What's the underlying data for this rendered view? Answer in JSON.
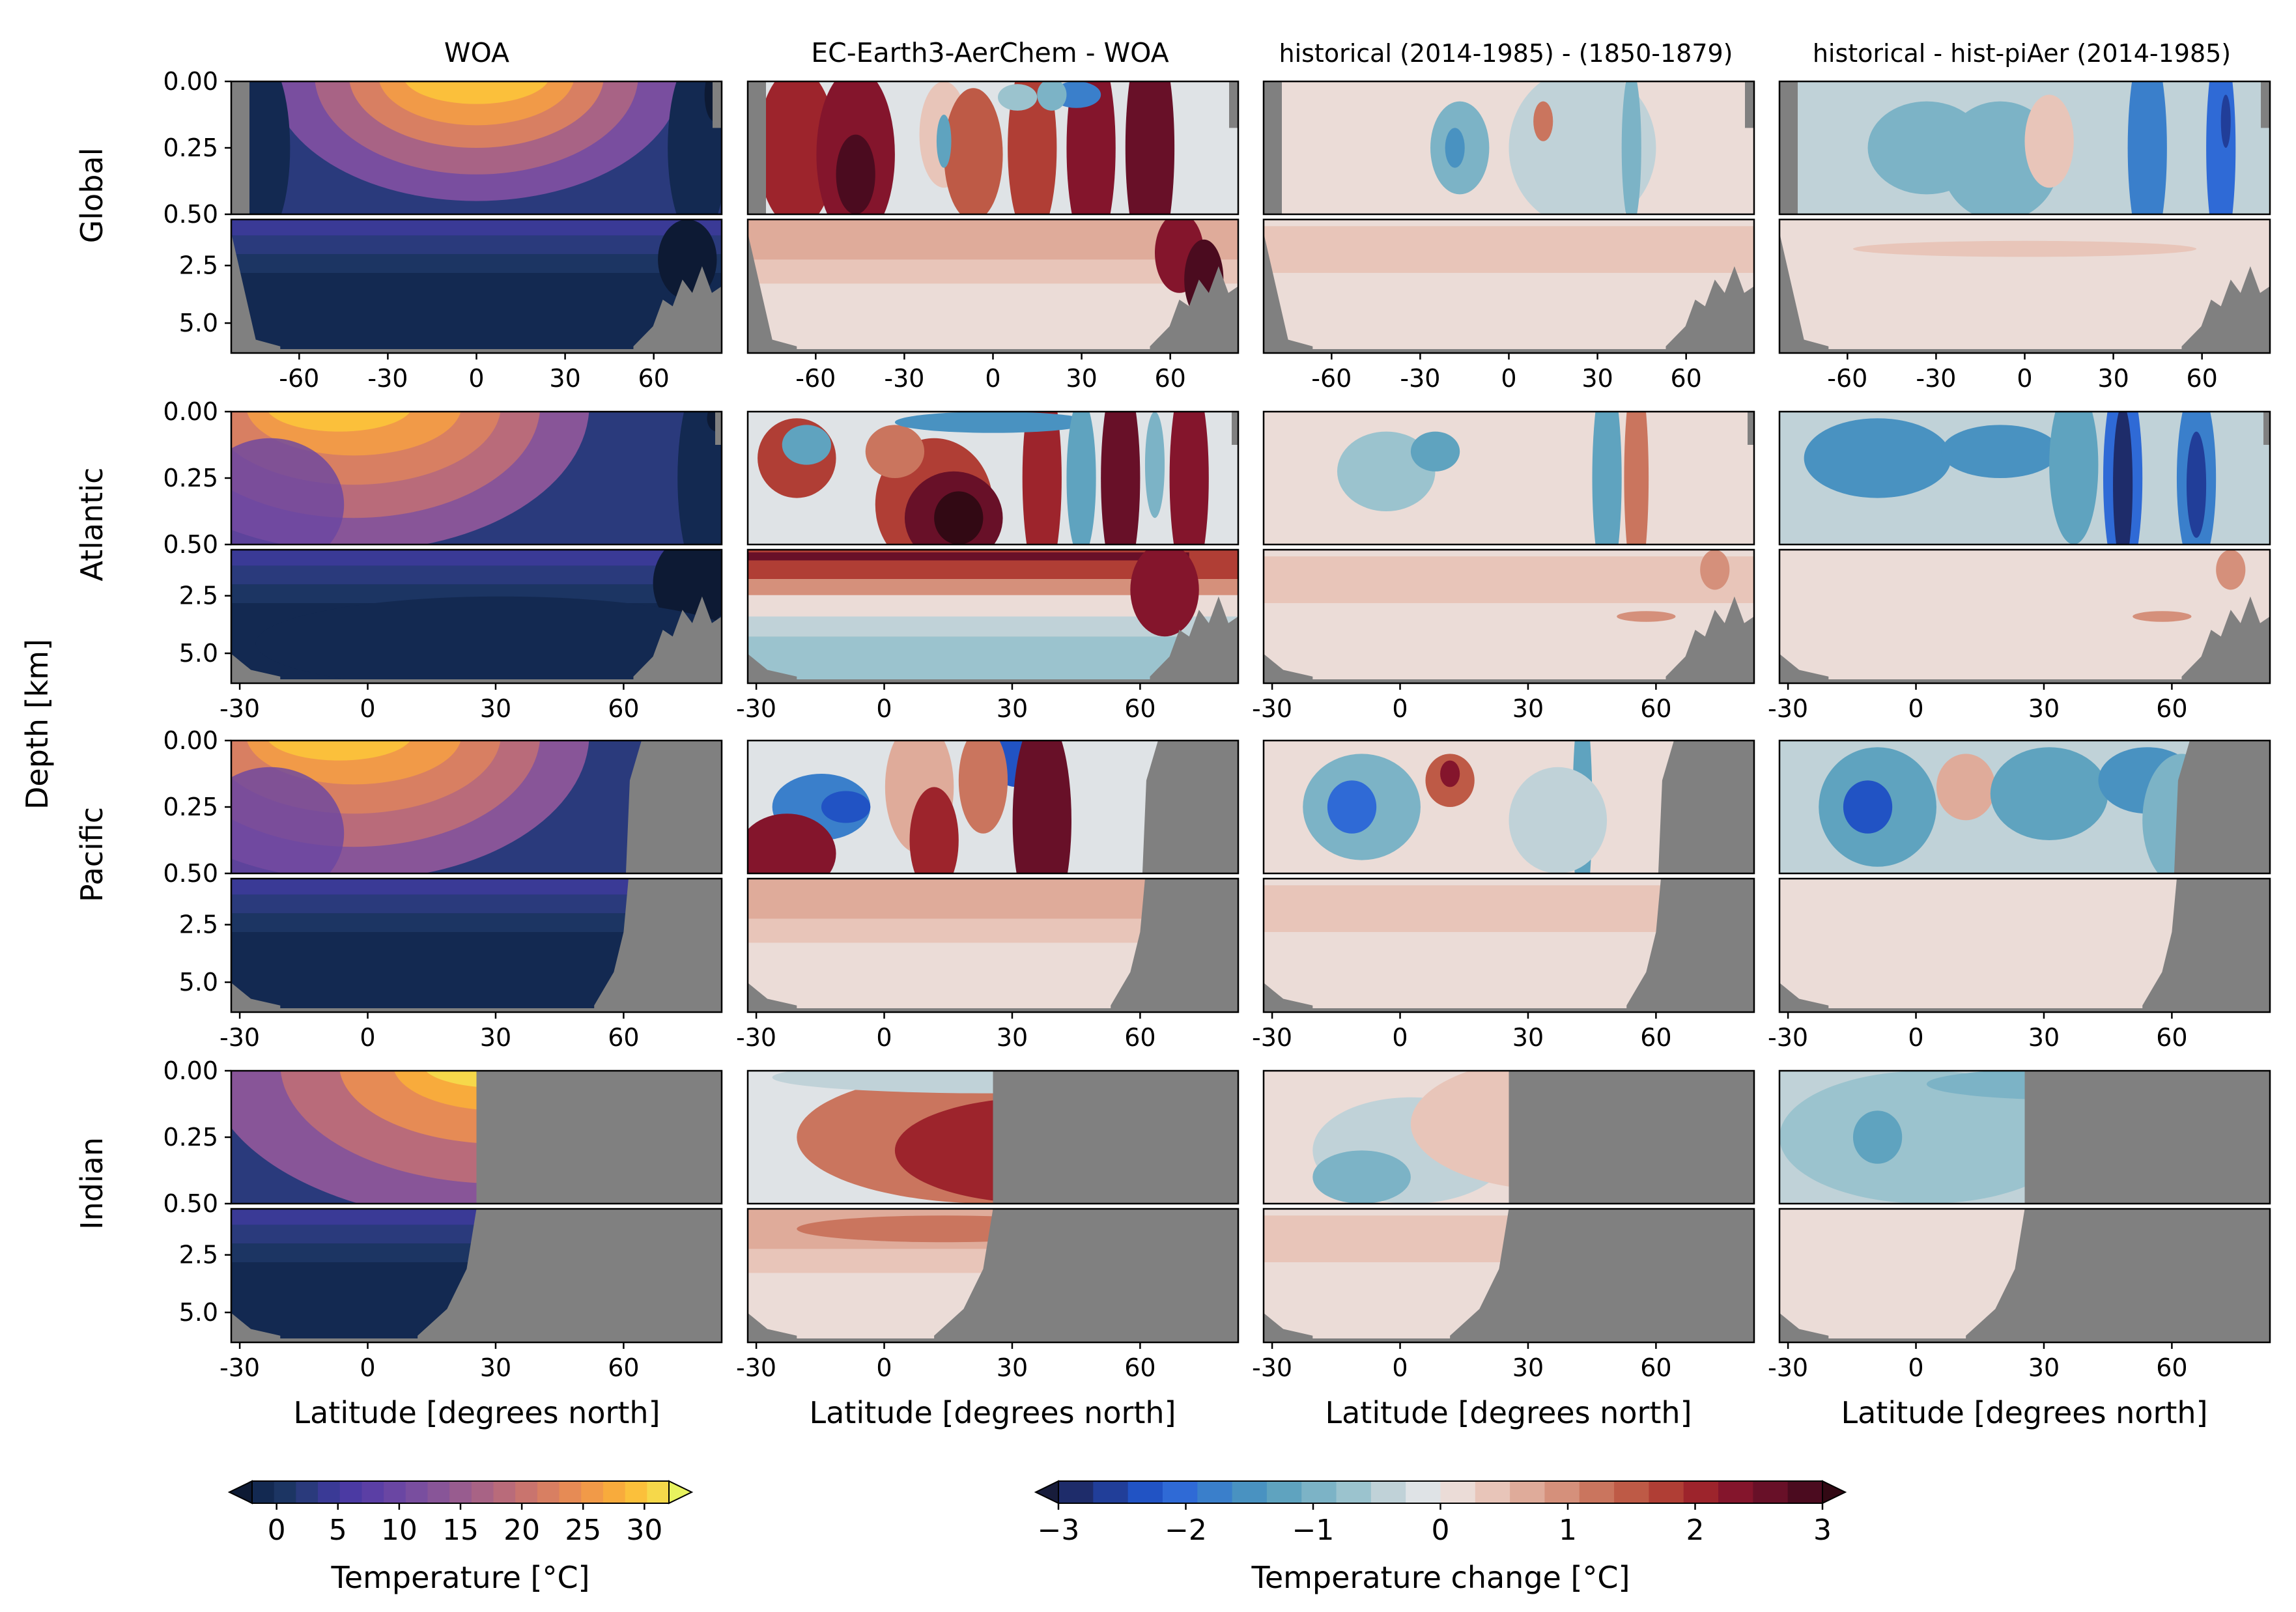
{
  "chart_data": {
    "type": "contour",
    "column_titles": [
      "WOA",
      "EC-Earth3-AerChem - WOA",
      "historical (2014-1985) - (1850-1879)",
      "historical - hist-piAer (2014-1985)"
    ],
    "row_labels": [
      "Global",
      "Atlantic",
      "Pacific",
      "Indian"
    ],
    "ylabel": "Depth [km]",
    "xlabel": "Latitude [degrees north]",
    "upper_depth_ticks": [
      "0.00",
      "0.25",
      "0.50"
    ],
    "upper_depth_tick_values": [
      0.0,
      0.25,
      0.5
    ],
    "lower_depth_ticks": [
      "2.5",
      "5.0"
    ],
    "lower_depth_tick_values": [
      2.5,
      5.0
    ],
    "lower_depth_range": [
      0.5,
      6.3
    ],
    "x_ticks_global": [
      "-60",
      "-30",
      "0",
      "30",
      "60"
    ],
    "x_tick_values_global": [
      -60,
      -30,
      0,
      30,
      60
    ],
    "x_range_global": [
      -83,
      83
    ],
    "x_ticks_basin": [
      "-30",
      "0",
      "30",
      "60"
    ],
    "x_tick_values_basin": [
      -30,
      0,
      30,
      60
    ],
    "x_range_basin": [
      -32,
      83
    ],
    "basin_north_limits": {
      "Global": 83,
      "Atlantic": 83,
      "Pacific": 61,
      "Indian": 25
    },
    "colorbar_temperature": {
      "label": "Temperature [°C]",
      "ticks": [
        "0",
        "5",
        "10",
        "15",
        "20",
        "25",
        "30"
      ],
      "tick_values": [
        0,
        5,
        10,
        15,
        20,
        25,
        30
      ],
      "range": [
        -2,
        32
      ],
      "extend": "both"
    },
    "colorbar_change": {
      "label": "Temperature change [°C]",
      "ticks": [
        "−3",
        "−2",
        "−1",
        "0",
        "1",
        "2",
        "3"
      ],
      "tick_values": [
        -3,
        -2,
        -1,
        0,
        1,
        2,
        3
      ],
      "range": [
        -3,
        3
      ],
      "extend": "both"
    },
    "colors": {
      "land": "#808080",
      "thermal": [
        "#0d1a34",
        "#132951",
        "#1c3563",
        "#2a3a7c",
        "#3a3a96",
        "#4b3aa3",
        "#5b3fa5",
        "#6a46a3",
        "#794e9f",
        "#885598",
        "#985c8f",
        "#a86385",
        "#b96b7a",
        "#c9746e",
        "#d87f62",
        "#e68b55",
        "#f19a48",
        "#f8ab3c",
        "#fbc03b",
        "#f6d84a",
        "#e8f35f"
      ],
      "balance": [
        "#171c3b",
        "#1e2c6a",
        "#213e99",
        "#2153c4",
        "#2f6ad6",
        "#3a7fcb",
        "#4992c1",
        "#5fa3bf",
        "#7cb3c6",
        "#9bc3ce",
        "#c0d2d8",
        "#dfe3e6",
        "#ebdcd7",
        "#e8c5b9",
        "#dfab9a",
        "#d5907b",
        "#ca755e",
        "#be5a46",
        "#b03e35",
        "#9d242c",
        "#84152c",
        "#681028",
        "#4b0b1f",
        "#320914"
      ]
    }
  }
}
